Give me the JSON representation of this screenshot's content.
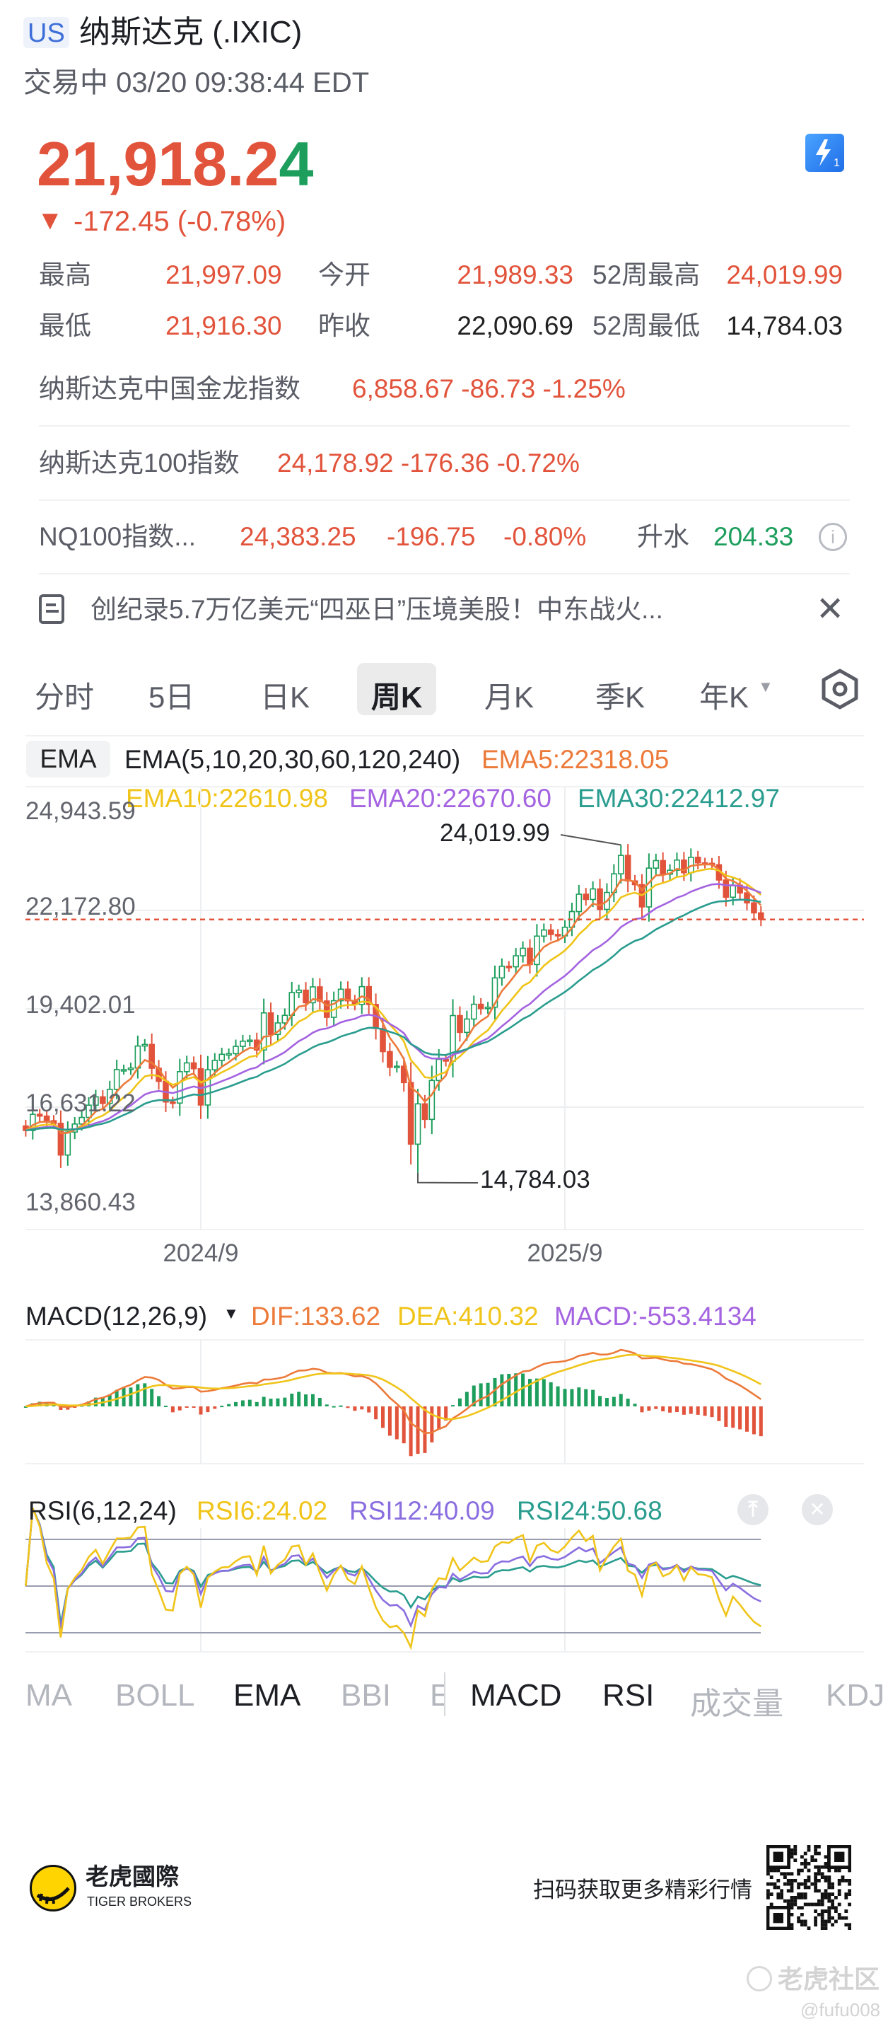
{
  "header": {
    "market_badge": "US",
    "title": "纳斯达克 (.IXIC)",
    "status": "交易中 03/20 09:38:44 EDT"
  },
  "quote": {
    "price_main": "21,918.2",
    "price_last_digit": "4",
    "change_arrow": "▼",
    "change": "-172.45 (-0.78%)",
    "stats": [
      {
        "label": "最高",
        "value": "21,997.09"
      },
      {
        "label": "今开",
        "value": "21,989.33"
      },
      {
        "label": "52周最高",
        "value": "24,019.99"
      },
      {
        "label": "最低",
        "value": "21,916.30"
      },
      {
        "label": "昨收",
        "value": "22,090.69"
      },
      {
        "label": "52周最低",
        "value": "14,784.03"
      }
    ]
  },
  "related": [
    {
      "name": "纳斯达克中国金龙指数",
      "value": "6,858.67 -86.73 -1.25%"
    },
    {
      "name": "纳斯达克100指数",
      "value": "24,178.92 -176.36 -0.72%"
    },
    {
      "name": "NQ100指数...",
      "price": "24,383.25",
      "change": "-196.75",
      "percent": "-0.80%",
      "premium_label": "升水",
      "premium": "204.33"
    }
  ],
  "news": {
    "headline": "创纪录5.7万亿美元“四巫日”压境美股！中东战火..."
  },
  "period_tabs": [
    "分时",
    "5日",
    "日K",
    "周K",
    "月K",
    "季K",
    "年K"
  ],
  "period_selected": "周K",
  "ema_legend": {
    "button": "EMA",
    "params": "EMA(5,10,20,30,60,120,240)",
    "ema5": "EMA5:22318.05",
    "ema10": "EMA10:22610.98",
    "ema20": "EMA20:22670.60",
    "ema30": "EMA30:22412.97"
  },
  "macd_legend": {
    "params": "MACD(12,26,9)",
    "dif": "DIF:133.62",
    "dea": "DEA:410.32",
    "macd": "MACD:-553.4134"
  },
  "rsi_legend": {
    "params": "RSI(6,12,24)",
    "rsi6": "RSI6:24.02",
    "rsi12": "RSI12:40.09",
    "rsi24": "RSI24:50.68"
  },
  "indicator_tabs": [
    "MA",
    "BOLL",
    "EMA",
    "BBI",
    "E",
    "MACD",
    "RSI",
    "成交量",
    "KDJ"
  ],
  "footer": {
    "brand_cn": "老虎國際",
    "brand_en": "TIGER BROKERS",
    "qr_caption": "扫码获取更多精彩行情",
    "watermark": "老虎社区",
    "watermark_user": "@fufu008"
  },
  "colors": {
    "up": "#1d9e5c",
    "down": "#e2533b",
    "ema5": "#ec7a3a",
    "ema10": "#f0c419",
    "ema20": "#a463e0",
    "ema30": "#2a9d8f",
    "dif": "#ec7a3a",
    "dea": "#f0c419",
    "rsi6": "#f0c419",
    "rsi12": "#8a6ee0",
    "rsi24": "#2a9d8f"
  },
  "chart_data": {
    "type": "candlestick",
    "period": "weekly",
    "y_ticks": [
      "24,943.59",
      "22,172.80",
      "19,402.01",
      "16,631.22",
      "13,860.43"
    ],
    "ylim": [
      13860.43,
      24943.59
    ],
    "x_ticks": [
      {
        "label": "2024/9",
        "date": "2024-09-02"
      },
      {
        "label": "2025/9",
        "date": "2025-09-01"
      }
    ],
    "last_price": 21918.24,
    "annotations": [
      {
        "label": "24,019.99",
        "date": "2025-10-27",
        "value": 24019.99,
        "kind": "high"
      },
      {
        "label": "14,784.03",
        "date": "2025-04-07",
        "value": 14784.03,
        "kind": "low"
      }
    ],
    "dates": [
      "2024-03-11",
      "2024-03-18",
      "2024-03-25",
      "2024-04-01",
      "2024-04-08",
      "2024-04-15",
      "2024-04-22",
      "2024-04-29",
      "2024-05-06",
      "2024-05-13",
      "2024-05-20",
      "2024-05-27",
      "2024-06-03",
      "2024-06-10",
      "2024-06-17",
      "2024-06-24",
      "2024-07-01",
      "2024-07-08",
      "2024-07-15",
      "2024-07-22",
      "2024-07-29",
      "2024-08-05",
      "2024-08-12",
      "2024-08-19",
      "2024-08-26",
      "2024-09-02",
      "2024-09-09",
      "2024-09-16",
      "2024-09-23",
      "2024-09-30",
      "2024-10-07",
      "2024-10-14",
      "2024-10-21",
      "2024-10-28",
      "2024-11-04",
      "2024-11-11",
      "2024-11-18",
      "2024-11-25",
      "2024-12-02",
      "2024-12-09",
      "2024-12-16",
      "2024-12-23",
      "2024-12-30",
      "2025-01-06",
      "2025-01-13",
      "2025-01-20",
      "2025-01-27",
      "2025-02-03",
      "2025-02-10",
      "2025-02-17",
      "2025-02-24",
      "2025-03-03",
      "2025-03-10",
      "2025-03-17",
      "2025-03-24",
      "2025-03-31",
      "2025-04-07",
      "2025-04-14",
      "2025-04-21",
      "2025-04-28",
      "2025-05-05",
      "2025-05-12",
      "2025-05-19",
      "2025-05-26",
      "2025-06-02",
      "2025-06-09",
      "2025-06-16",
      "2025-06-23",
      "2025-06-30",
      "2025-07-07",
      "2025-07-14",
      "2025-07-21",
      "2025-07-28",
      "2025-08-04",
      "2025-08-11",
      "2025-08-18",
      "2025-08-25",
      "2025-09-01",
      "2025-09-08",
      "2025-09-15",
      "2025-09-22",
      "2025-09-29",
      "2025-10-06",
      "2025-10-13",
      "2025-10-20",
      "2025-10-27",
      "2025-11-03",
      "2025-11-10",
      "2025-11-17",
      "2025-11-24",
      "2025-12-01",
      "2025-12-08",
      "2025-12-15",
      "2025-12-22",
      "2025-12-29",
      "2026-01-05",
      "2026-01-12",
      "2026-01-19",
      "2026-01-26",
      "2026-02-02",
      "2026-02-09",
      "2026-02-16",
      "2026-02-23",
      "2026-03-02",
      "2026-03-09",
      "2026-03-16"
    ],
    "close": [
      15973,
      16429,
      16379,
      16249,
      16175,
      15282,
      15928,
      16156,
      16341,
      16686,
      16921,
      16735,
      17133,
      17689,
      17689,
      17733,
      18353,
      18398,
      17727,
      17358,
      16776,
      16745,
      17631,
      17878,
      17714,
      16691,
      17684,
      17948,
      18120,
      18138,
      18343,
      18490,
      18519,
      18240,
      19287,
      18680,
      19004,
      19218,
      19860,
      19927,
      19573,
      20020,
      19622,
      19162,
      19630,
      19954,
      19627,
      19524,
      20027,
      19524,
      18847,
      18196,
      17754,
      17784,
      17323,
      15588,
      16724,
      16286,
      17383,
      17978,
      17929,
      19212,
      18737,
      19114,
      19530,
      19407,
      19447,
      20273,
      20601,
      20586,
      20896,
      21108,
      20650,
      21450,
      21623,
      21496,
      21456,
      21700,
      22141,
      22631,
      22484,
      22780,
      22204,
      22680,
      23205,
      23725,
      23005,
      22900,
      22273,
      23366,
      23578,
      23195,
      23307,
      23593,
      23236,
      23671,
      23515,
      23501,
      23461,
      23031,
      22546,
      22886,
      22668,
      22387,
      22105,
      21918.24
    ],
    "rsi_levels": [
      80,
      50,
      20
    ]
  }
}
